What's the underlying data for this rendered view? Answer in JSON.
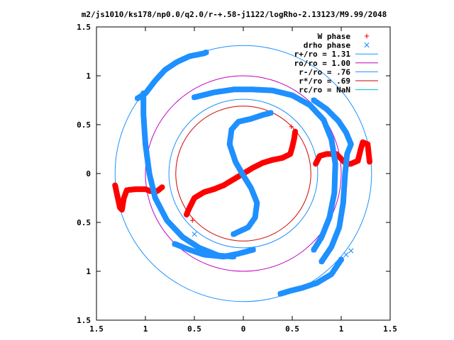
{
  "chart_data": {
    "type": "scatter",
    "title": "m2/js1010/ks178/np0.0/q2.0/r-+.58-j1122/logRho-2.13123/M9.99/2048",
    "xlim": [
      -1.5,
      1.5
    ],
    "ylim": [
      -1.5,
      1.5
    ],
    "aspect": "equal",
    "grid": false,
    "legend_position": "top-right",
    "x_ticks": [
      -1.5,
      -1,
      -0.5,
      0,
      0.5,
      1,
      1.5
    ],
    "x_tick_labels": [
      "1.5",
      "1",
      "0.5",
      "0",
      "0.5",
      "1",
      "1.5"
    ],
    "y_ticks": [
      1.5,
      1,
      0.5,
      0,
      -0.5,
      -1,
      -1.5
    ],
    "y_tick_labels": [
      "1.5",
      "1",
      "0.5",
      "0",
      "0.5",
      "1",
      "1.5"
    ],
    "circles": [
      {
        "label": "r+/ro = 1.31",
        "radius": 1.31,
        "color": "#1e90ff"
      },
      {
        "label": "ro/ro = 1.00",
        "radius": 1.0,
        "color": "#c000c0"
      },
      {
        "label": "r-/ro = .76",
        "radius": 0.76,
        "color": "#1e90ff"
      },
      {
        "label": "r*/ro = .69",
        "radius": 0.69,
        "color": "#d00000"
      },
      {
        "label": "rc/ro = NaN",
        "radius": null,
        "color": "#00c0c0"
      }
    ],
    "series": [
      {
        "name": "W phase",
        "marker": "plus",
        "color": "#ff0000",
        "segments": [
          [
            [
              -0.58,
              -0.42
            ],
            [
              -0.55,
              -0.35
            ],
            [
              -0.5,
              -0.25
            ],
            [
              -0.4,
              -0.19
            ],
            [
              -0.3,
              -0.16
            ],
            [
              -0.2,
              -0.12
            ],
            [
              -0.1,
              -0.06
            ],
            [
              0,
              0
            ],
            [
              0.1,
              0.06
            ],
            [
              0.2,
              0.11
            ],
            [
              0.3,
              0.14
            ],
            [
              0.4,
              0.16
            ],
            [
              0.48,
              0.2
            ],
            [
              0.5,
              0.27
            ],
            [
              0.52,
              0.36
            ],
            [
              0.53,
              0.43
            ]
          ],
          [
            [
              -1.31,
              -0.12
            ],
            [
              -1.28,
              -0.26
            ],
            [
              -1.26,
              -0.35
            ],
            [
              -1.24,
              -0.37
            ],
            [
              -1.22,
              -0.25
            ],
            [
              -1.19,
              -0.17
            ],
            [
              -1.1,
              -0.16
            ],
            [
              -1.0,
              -0.16
            ],
            [
              -0.95,
              -0.18
            ],
            [
              -0.88,
              -0.18
            ],
            [
              -0.83,
              -0.14
            ]
          ],
          [
            [
              0.74,
              0.1
            ],
            [
              0.78,
              0.18
            ],
            [
              0.85,
              0.2
            ],
            [
              0.95,
              0.2
            ],
            [
              1.0,
              0.15
            ],
            [
              1.05,
              0.1
            ],
            [
              1.1,
              0.1
            ],
            [
              1.17,
              0.13
            ],
            [
              1.2,
              0.25
            ],
            [
              1.22,
              0.32
            ],
            [
              1.27,
              0.3
            ],
            [
              1.29,
              0.12
            ]
          ]
        ],
        "stray_points": [
          [
            -0.52,
            -0.48
          ],
          [
            0.49,
            0.48
          ]
        ]
      },
      {
        "name": "drho phase",
        "marker": "cross",
        "color": "#1e90ff",
        "segments": [
          [
            [
              -0.1,
              -0.62
            ],
            [
              0.05,
              -0.55
            ],
            [
              0.12,
              -0.45
            ],
            [
              0.14,
              -0.3
            ],
            [
              0.08,
              -0.15
            ],
            [
              0,
              -0.02
            ],
            [
              -0.08,
              0.12
            ],
            [
              -0.14,
              0.3
            ],
            [
              -0.12,
              0.45
            ],
            [
              -0.05,
              0.53
            ],
            [
              0.08,
              0.56
            ],
            [
              0.2,
              0.6
            ],
            [
              0.28,
              0.62
            ]
          ],
          [
            [
              -1.08,
              0.77
            ],
            [
              -1.0,
              0.82
            ],
            [
              -0.9,
              0.95
            ],
            [
              -0.8,
              1.06
            ],
            [
              -0.68,
              1.14
            ],
            [
              -0.55,
              1.2
            ],
            [
              -0.4,
              1.23
            ],
            [
              -0.38,
              1.24
            ]
          ],
          [
            [
              -1.02,
              0.82
            ],
            [
              -1.02,
              0.6
            ],
            [
              -1.0,
              0.3
            ],
            [
              -0.96,
              0.0
            ],
            [
              -0.9,
              -0.25
            ],
            [
              -0.78,
              -0.48
            ],
            [
              -0.62,
              -0.65
            ],
            [
              -0.45,
              -0.76
            ],
            [
              -0.25,
              -0.84
            ],
            [
              -0.1,
              -0.85
            ]
          ],
          [
            [
              -0.7,
              -0.72
            ],
            [
              -0.55,
              -0.78
            ],
            [
              -0.4,
              -0.83
            ],
            [
              -0.2,
              -0.85
            ],
            [
              -0.05,
              -0.82
            ],
            [
              0.1,
              -0.78
            ]
          ],
          [
            [
              -0.5,
              0.78
            ],
            [
              -0.3,
              0.83
            ],
            [
              -0.1,
              0.86
            ],
            [
              0.1,
              0.86
            ],
            [
              0.3,
              0.85
            ],
            [
              0.5,
              0.8
            ],
            [
              0.68,
              0.7
            ],
            [
              0.82,
              0.55
            ],
            [
              0.9,
              0.35
            ],
            [
              0.94,
              0.1
            ],
            [
              0.93,
              -0.2
            ],
            [
              0.88,
              -0.45
            ],
            [
              0.8,
              -0.65
            ],
            [
              0.72,
              -0.78
            ]
          ],
          [
            [
              0.72,
              0.75
            ],
            [
              0.85,
              0.66
            ],
            [
              0.97,
              0.54
            ],
            [
              1.05,
              0.42
            ],
            [
              1.1,
              0.3
            ],
            [
              1.06,
              0.2
            ],
            [
              1.04,
              0.0
            ],
            [
              1.02,
              -0.3
            ],
            [
              0.98,
              -0.55
            ],
            [
              0.9,
              -0.75
            ],
            [
              0.8,
              -0.9
            ]
          ],
          [
            [
              1.0,
              -0.88
            ],
            [
              0.9,
              -1.03
            ],
            [
              0.75,
              -1.12
            ],
            [
              0.6,
              -1.17
            ],
            [
              0.48,
              -1.2
            ],
            [
              0.38,
              -1.23
            ]
          ]
        ],
        "stray_points": [
          [
            1.1,
            -0.79
          ],
          [
            1.05,
            -0.83
          ],
          [
            -0.5,
            -0.62
          ]
        ]
      }
    ]
  }
}
